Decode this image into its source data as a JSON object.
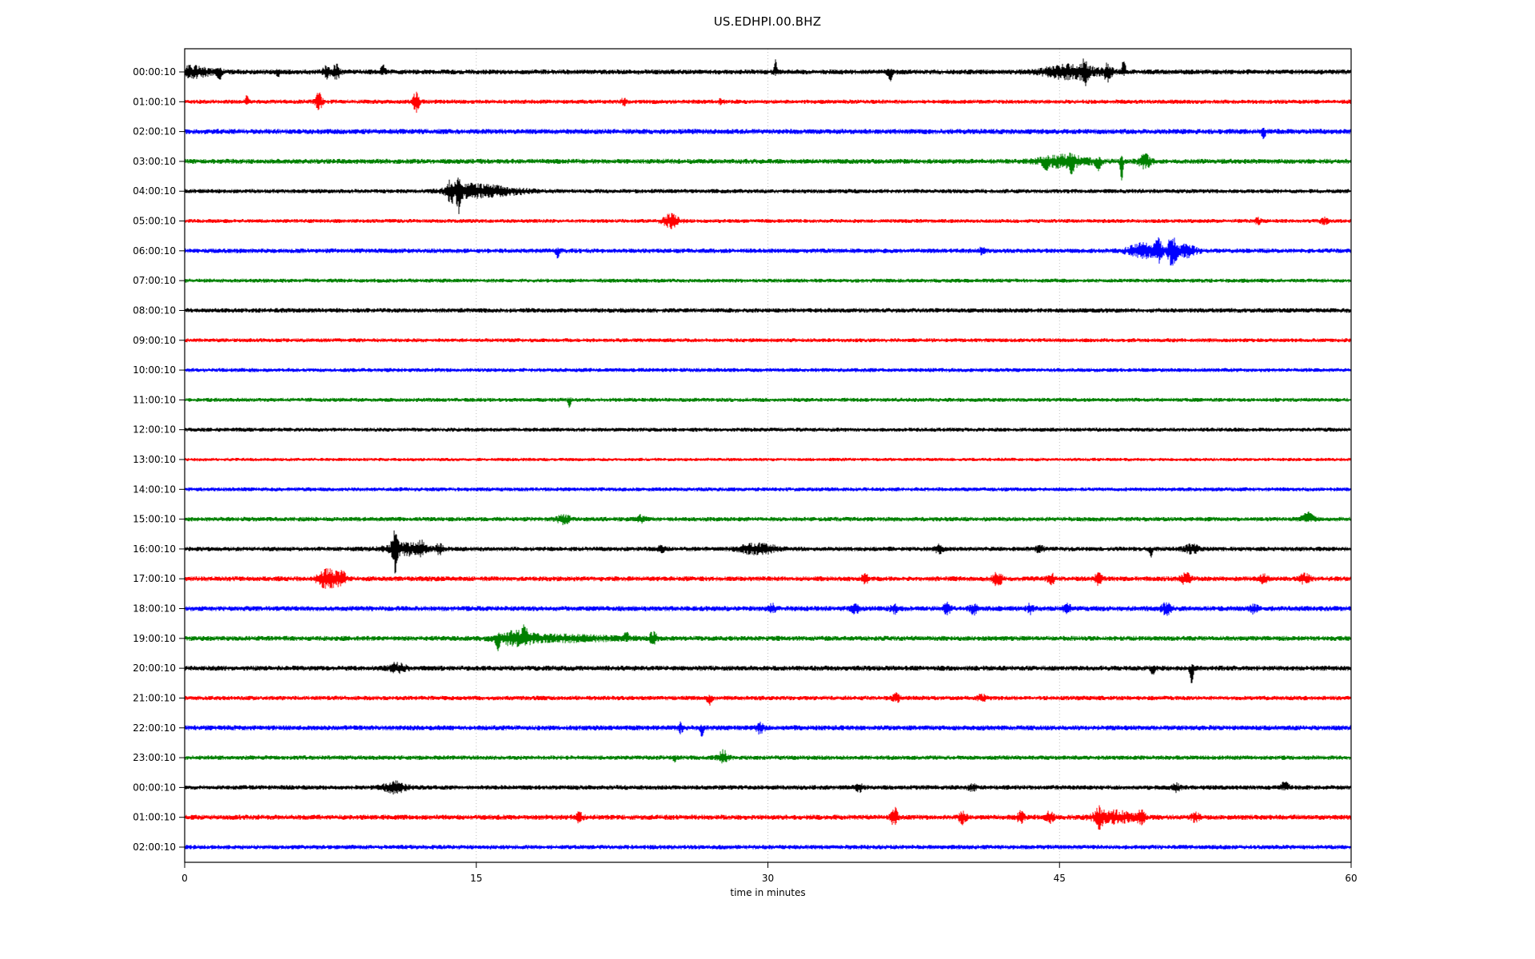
{
  "chart_data": {
    "type": "line",
    "subtype": "seismogram-helicorder",
    "title": "US.EDHPI.00.BHZ",
    "xlabel": "time in minutes",
    "x_ticks": [
      0,
      15,
      30,
      45,
      60
    ],
    "xlim": [
      0,
      60
    ],
    "grid": {
      "vertical_at": [
        15,
        30,
        45
      ],
      "style": "dotted",
      "color": "#b0b0b0"
    },
    "legend": "none",
    "trace_colors_cycle": [
      "#000000",
      "#ff0000",
      "#0000ff",
      "#008000"
    ],
    "frame_color": "#000000",
    "rows": [
      {
        "label": "00:00:10",
        "color": "#000000",
        "noise_amp": 3.2,
        "events": [
          [
            0.4,
            1.6,
            6,
            "b"
          ],
          [
            1.8,
            0.2,
            8,
            "d"
          ],
          [
            4.8,
            0.15,
            5,
            "d"
          ],
          [
            7.3,
            0.3,
            7,
            "b"
          ],
          [
            7.8,
            0.3,
            8,
            "b"
          ],
          [
            10.2,
            0.2,
            6,
            "u"
          ],
          [
            30.4,
            0.12,
            13,
            "u"
          ],
          [
            36.3,
            0.2,
            9,
            "d"
          ],
          [
            45.6,
            2.2,
            8,
            "b"
          ],
          [
            46.3,
            0.2,
            12,
            "b"
          ],
          [
            47.5,
            0.3,
            10,
            "b"
          ],
          [
            48.3,
            0.15,
            14,
            "u"
          ]
        ]
      },
      {
        "label": "01:00:10",
        "color": "#ff0000",
        "noise_amp": 2.8,
        "events": [
          [
            3.2,
            0.12,
            6,
            "u"
          ],
          [
            6.9,
            0.25,
            11,
            "b"
          ],
          [
            11.9,
            0.25,
            12,
            "b"
          ],
          [
            22.6,
            0.2,
            4,
            "b"
          ],
          [
            27.6,
            0.2,
            4,
            "b"
          ]
        ]
      },
      {
        "label": "02:00:10",
        "color": "#0000ff",
        "noise_amp": 3.4,
        "events": [
          [
            55.5,
            0.15,
            8,
            "d"
          ]
        ]
      },
      {
        "label": "03:00:10",
        "color": "#008000",
        "noise_amp": 3.2,
        "events": [
          [
            44.3,
            0.2,
            8,
            "d"
          ],
          [
            45.3,
            2.0,
            7,
            "b"
          ],
          [
            45.6,
            0.2,
            10,
            "d"
          ],
          [
            47.0,
            0.2,
            9,
            "d"
          ],
          [
            48.2,
            0.12,
            21,
            "d"
          ],
          [
            49.4,
            0.5,
            8,
            "b"
          ]
        ]
      },
      {
        "label": "04:00:10",
        "color": "#000000",
        "noise_amp": 2.8,
        "events": [
          [
            13.7,
            0.3,
            12,
            "b"
          ],
          [
            14.1,
            0.18,
            24,
            "b"
          ],
          [
            14.6,
            1.8,
            7,
            "b"
          ],
          [
            16.3,
            2.0,
            4,
            "b"
          ]
        ]
      },
      {
        "label": "05:00:10",
        "color": "#ff0000",
        "noise_amp": 2.6,
        "events": [
          [
            25.0,
            0.6,
            8,
            "b"
          ],
          [
            55.2,
            0.2,
            4,
            "b"
          ],
          [
            58.6,
            0.3,
            4,
            "b"
          ]
        ]
      },
      {
        "label": "06:00:10",
        "color": "#0000ff",
        "noise_amp": 3.0,
        "events": [
          [
            19.2,
            0.15,
            8,
            "d"
          ],
          [
            41.0,
            0.2,
            4,
            "b"
          ],
          [
            49.3,
            1.2,
            8,
            "b"
          ],
          [
            50.1,
            0.3,
            12,
            "b"
          ],
          [
            50.8,
            0.35,
            20,
            "b"
          ],
          [
            51.5,
            0.8,
            7,
            "b"
          ]
        ]
      },
      {
        "label": "07:00:10",
        "color": "#008000",
        "noise_amp": 2.6,
        "events": []
      },
      {
        "label": "08:00:10",
        "color": "#000000",
        "noise_amp": 3.0,
        "events": []
      },
      {
        "label": "09:00:10",
        "color": "#ff0000",
        "noise_amp": 2.6,
        "events": []
      },
      {
        "label": "10:00:10",
        "color": "#0000ff",
        "noise_amp": 2.6,
        "events": []
      },
      {
        "label": "11:00:10",
        "color": "#008000",
        "noise_amp": 2.6,
        "events": [
          [
            19.8,
            0.12,
            8,
            "d"
          ]
        ]
      },
      {
        "label": "12:00:10",
        "color": "#000000",
        "noise_amp": 2.6,
        "events": []
      },
      {
        "label": "13:00:10",
        "color": "#ff0000",
        "noise_amp": 2.2,
        "events": []
      },
      {
        "label": "14:00:10",
        "color": "#0000ff",
        "noise_amp": 2.6,
        "events": []
      },
      {
        "label": "15:00:10",
        "color": "#008000",
        "noise_amp": 2.9,
        "events": [
          [
            19.5,
            0.5,
            5,
            "b"
          ],
          [
            23.5,
            0.3,
            4,
            "b"
          ],
          [
            57.8,
            0.5,
            6,
            "u"
          ]
        ]
      },
      {
        "label": "16:00:10",
        "color": "#000000",
        "noise_amp": 2.9,
        "events": [
          [
            10.8,
            0.2,
            26,
            "b"
          ],
          [
            11.4,
            1.6,
            7,
            "b"
          ],
          [
            12.2,
            0.2,
            9,
            "b"
          ],
          [
            13.1,
            0.25,
            6,
            "b"
          ],
          [
            24.5,
            0.3,
            4,
            "b"
          ],
          [
            29.5,
            1.4,
            6,
            "b"
          ],
          [
            38.8,
            0.3,
            5,
            "b"
          ],
          [
            44.0,
            0.3,
            4,
            "b"
          ],
          [
            49.7,
            0.15,
            8,
            "d"
          ],
          [
            51.8,
            0.6,
            5,
            "b"
          ]
        ]
      },
      {
        "label": "17:00:10",
        "color": "#ff0000",
        "noise_amp": 3.2,
        "events": [
          [
            7.4,
            0.8,
            12,
            "b"
          ],
          [
            8.1,
            0.3,
            8,
            "b"
          ],
          [
            35.0,
            0.3,
            5,
            "b"
          ],
          [
            41.8,
            0.4,
            7,
            "b"
          ],
          [
            44.6,
            0.3,
            5,
            "b"
          ],
          [
            47.0,
            0.3,
            6,
            "b"
          ],
          [
            51.5,
            0.4,
            6,
            "b"
          ],
          [
            55.5,
            0.3,
            5,
            "b"
          ],
          [
            57.6,
            0.4,
            6,
            "b"
          ]
        ]
      },
      {
        "label": "18:00:10",
        "color": "#0000ff",
        "noise_amp": 3.3,
        "events": [
          [
            30.2,
            0.3,
            5,
            "b"
          ],
          [
            34.5,
            0.3,
            6,
            "b"
          ],
          [
            36.5,
            0.3,
            5,
            "b"
          ],
          [
            39.2,
            0.3,
            6,
            "b"
          ],
          [
            40.6,
            0.3,
            6,
            "b"
          ],
          [
            43.5,
            0.3,
            5,
            "b"
          ],
          [
            45.4,
            0.3,
            5,
            "b"
          ],
          [
            50.5,
            0.4,
            7,
            "b"
          ],
          [
            55.0,
            0.3,
            5,
            "b"
          ]
        ]
      },
      {
        "label": "19:00:10",
        "color": "#008000",
        "noise_amp": 3.2,
        "events": [
          [
            16.1,
            0.15,
            11,
            "d"
          ],
          [
            17.0,
            1.4,
            7,
            "b"
          ],
          [
            17.5,
            0.25,
            9,
            "u"
          ],
          [
            19.5,
            4.0,
            3,
            "b"
          ],
          [
            22.7,
            0.2,
            6,
            "u"
          ],
          [
            24.1,
            0.25,
            9,
            "b"
          ]
        ]
      },
      {
        "label": "20:00:10",
        "color": "#000000",
        "noise_amp": 3.3,
        "events": [
          [
            10.9,
            0.7,
            5,
            "b"
          ],
          [
            49.8,
            0.2,
            5,
            "d"
          ],
          [
            51.8,
            0.15,
            15,
            "d"
          ]
        ]
      },
      {
        "label": "21:00:10",
        "color": "#ff0000",
        "noise_amp": 2.9,
        "events": [
          [
            27.0,
            0.2,
            7,
            "d"
          ],
          [
            36.6,
            0.3,
            5,
            "b"
          ],
          [
            41.0,
            0.3,
            4,
            "b"
          ]
        ]
      },
      {
        "label": "22:00:10",
        "color": "#0000ff",
        "noise_amp": 3.3,
        "events": [
          [
            25.5,
            0.2,
            5,
            "b"
          ],
          [
            26.6,
            0.15,
            8,
            "d"
          ],
          [
            29.6,
            0.3,
            7,
            "b"
          ]
        ]
      },
      {
        "label": "23:00:10",
        "color": "#008000",
        "noise_amp": 2.9,
        "events": [
          [
            25.2,
            0.15,
            4,
            "d"
          ],
          [
            27.7,
            0.4,
            8,
            "b"
          ]
        ]
      },
      {
        "label": "00:00:10",
        "color": "#000000",
        "noise_amp": 3.0,
        "events": [
          [
            10.8,
            0.9,
            6,
            "b"
          ],
          [
            34.7,
            0.3,
            4,
            "b"
          ],
          [
            40.5,
            0.3,
            4,
            "b"
          ],
          [
            51.0,
            0.3,
            4,
            "b"
          ],
          [
            56.6,
            0.3,
            6,
            "u"
          ]
        ]
      },
      {
        "label": "01:00:10",
        "color": "#ff0000",
        "noise_amp": 3.3,
        "events": [
          [
            20.3,
            0.3,
            5,
            "b"
          ],
          [
            36.5,
            0.25,
            12,
            "b"
          ],
          [
            40.0,
            0.3,
            7,
            "b"
          ],
          [
            43.0,
            0.3,
            6,
            "b"
          ],
          [
            44.5,
            0.3,
            6,
            "b"
          ],
          [
            47.0,
            0.3,
            11,
            "b"
          ],
          [
            47.8,
            1.5,
            7,
            "b"
          ],
          [
            49.2,
            0.3,
            7,
            "b"
          ],
          [
            52.0,
            0.3,
            5,
            "b"
          ]
        ]
      },
      {
        "label": "02:00:10",
        "color": "#0000ff",
        "noise_amp": 2.9,
        "events": []
      }
    ],
    "event_tuple_format": "[start_minute, duration_minutes, amplitude_px, direction(b=both,u=up,d=down)]"
  }
}
